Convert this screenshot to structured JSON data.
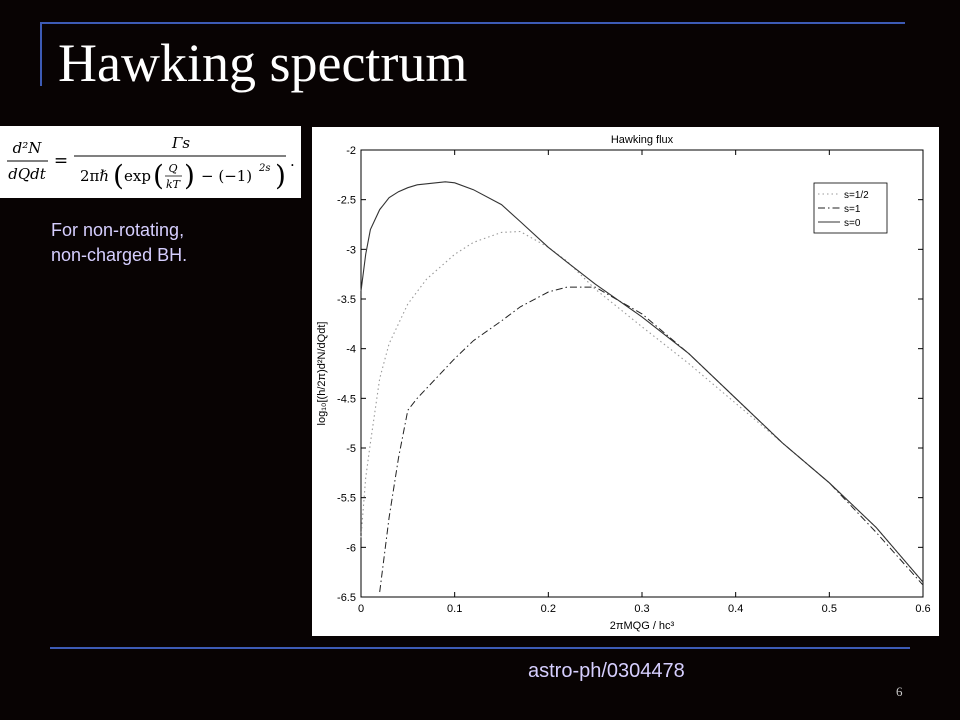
{
  "slide": {
    "title": "Hawking spectrum",
    "note_lines": [
      "For non-rotating,",
      "non-charged BH."
    ],
    "footer": "astro-ph/0304478",
    "page_number": "6"
  },
  "formula": {
    "lhs_num": "d²N",
    "lhs_den": "dQdt",
    "eq": "=",
    "rhs_num": "Γs",
    "rhs_den_prefix": "2πℏ",
    "exp": "exp",
    "frac_num": "Q",
    "frac_den": "kT",
    "minus_term": "− (−1)",
    "power": "2s",
    "period": "."
  },
  "colors": {
    "background": "#080303",
    "accent_rule": "#3d5bb5",
    "title": "#ffffff",
    "note_text": "#d6cfff"
  },
  "chart_data": {
    "type": "line",
    "title": "Hawking flux",
    "xlabel": "2πMQG / hc³",
    "ylabel": "log₁₀[(h/2π)d²N/dQdt]",
    "xlim": [
      0,
      0.6
    ],
    "ylim": [
      -6.5,
      -2
    ],
    "xticks": [
      "0",
      "0.1",
      "0.2",
      "0.3",
      "0.4",
      "0.5",
      "0.6"
    ],
    "yticks": [
      "-2",
      "-2.5",
      "-3",
      "-3.5",
      "-4",
      "-4.5",
      "-5",
      "-5.5",
      "-6",
      "-6.5"
    ],
    "grid": false,
    "legend_position": "top-right",
    "series": [
      {
        "name": "s=1/2",
        "style": "dotted",
        "x": [
          0.0,
          0.005,
          0.01,
          0.02,
          0.03,
          0.05,
          0.07,
          0.1,
          0.12,
          0.15,
          0.17,
          0.2,
          0.22,
          0.25,
          0.3,
          0.35,
          0.4,
          0.45,
          0.5,
          0.55,
          0.6
        ],
        "y": [
          -5.9,
          -5.3,
          -4.95,
          -4.3,
          -3.95,
          -3.55,
          -3.3,
          -3.05,
          -2.93,
          -2.83,
          -2.82,
          -2.98,
          -3.12,
          -3.4,
          -3.78,
          -4.15,
          -4.55,
          -4.95,
          -5.35,
          -5.8,
          -6.35
        ]
      },
      {
        "name": "s=1",
        "style": "dashdot",
        "x": [
          0.02,
          0.03,
          0.04,
          0.05,
          0.06,
          0.08,
          0.1,
          0.12,
          0.15,
          0.17,
          0.2,
          0.22,
          0.25,
          0.3,
          0.35,
          0.4,
          0.45,
          0.5,
          0.55,
          0.6
        ],
        "y": [
          -6.45,
          -5.7,
          -5.1,
          -4.62,
          -4.5,
          -4.3,
          -4.1,
          -3.92,
          -3.72,
          -3.58,
          -3.43,
          -3.38,
          -3.38,
          -3.65,
          -4.05,
          -4.5,
          -4.95,
          -5.35,
          -5.85,
          -6.38
        ]
      },
      {
        "name": "s=0",
        "style": "solid",
        "x": [
          0.0,
          0.005,
          0.01,
          0.02,
          0.03,
          0.04,
          0.05,
          0.06,
          0.07,
          0.08,
          0.09,
          0.1,
          0.12,
          0.15,
          0.17,
          0.2,
          0.22,
          0.25,
          0.3,
          0.35,
          0.4,
          0.45,
          0.5,
          0.55,
          0.6
        ],
        "y": [
          -3.42,
          -3.05,
          -2.8,
          -2.6,
          -2.48,
          -2.42,
          -2.38,
          -2.35,
          -2.34,
          -2.33,
          -2.32,
          -2.33,
          -2.4,
          -2.55,
          -2.72,
          -2.98,
          -3.13,
          -3.35,
          -3.68,
          -4.05,
          -4.5,
          -4.95,
          -5.35,
          -5.8,
          -6.35
        ]
      }
    ]
  }
}
